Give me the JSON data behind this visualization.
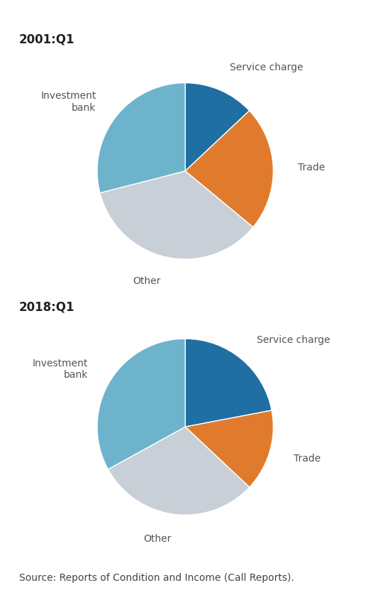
{
  "chart1_title": "2001:Q1",
  "chart2_title": "2018:Q1",
  "source_text": "Source: Reports of Condition and Income (Call Reports).",
  "pie1": {
    "labels": [
      "Service charge",
      "Trade",
      "Other",
      "Investment bank"
    ],
    "values": [
      13,
      23,
      35,
      29
    ],
    "colors": [
      "#1f6fa3",
      "#e07b2e",
      "#c8cfd6",
      "#6db3cc"
    ],
    "startangle": 90
  },
  "pie2": {
    "labels": [
      "Service charge",
      "Trade",
      "Other",
      "Investment bank"
    ],
    "values": [
      22,
      15,
      30,
      33
    ],
    "colors": [
      "#1f6fa3",
      "#e07b2e",
      "#c8cfd6",
      "#6db3cc"
    ],
    "startangle": 90
  },
  "label_fontsize": 10,
  "title_fontsize": 12,
  "source_fontsize": 10,
  "background_color": "#ffffff",
  "label_color": "#555555"
}
